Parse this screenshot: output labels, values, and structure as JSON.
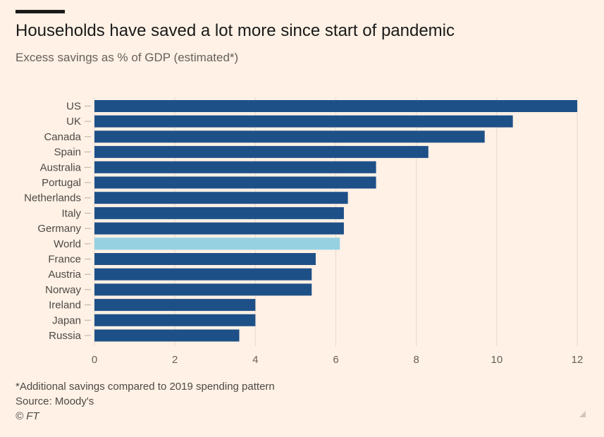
{
  "header": {
    "title": "Households have saved a lot more since start of pandemic",
    "subtitle": "Excess savings as % of GDP (estimated*)"
  },
  "footer": {
    "note": "*Additional savings compared to 2019 spending pattern",
    "source": "Source: Moody's",
    "credit": "© FT"
  },
  "colors": {
    "background": "#fff1e5",
    "bar": "#1e5088",
    "highlight": "#96d1e2",
    "grid": "#e6d9ce"
  },
  "chart_data": {
    "type": "bar",
    "orientation": "horizontal",
    "title": "Households have saved a lot more since start of pandemic",
    "subtitle": "Excess savings as % of GDP (estimated*)",
    "categories": [
      "US",
      "UK",
      "Canada",
      "Spain",
      "Australia",
      "Portugal",
      "Netherlands",
      "Italy",
      "Germany",
      "World",
      "France",
      "Austria",
      "Norway",
      "Ireland",
      "Japan",
      "Russia"
    ],
    "values": [
      12,
      10.4,
      9.7,
      8.3,
      7.0,
      7.0,
      6.3,
      6.2,
      6.2,
      6.1,
      5.5,
      5.4,
      5.4,
      4.0,
      4.0,
      3.6
    ],
    "highlighted": "World",
    "xlim": [
      0,
      12
    ],
    "xticks": [
      0,
      2,
      4,
      6,
      8,
      10,
      12
    ],
    "grid": true
  }
}
